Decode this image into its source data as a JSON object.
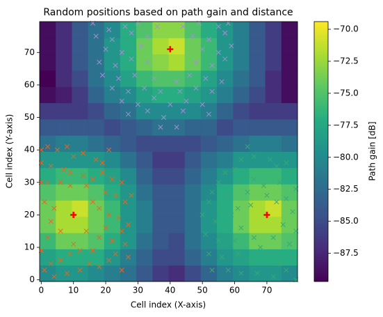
{
  "chart_data": {
    "type": "heatmap",
    "title": "Random positions based on path gain and distance",
    "x_label": "Cell index (X-axis)",
    "y_label": "Cell index (Y-axis)",
    "colorbar_label": "Path gain [dB]",
    "xlim": [
      -0.5,
      79.5
    ],
    "ylim": [
      -0.5,
      79.5
    ],
    "xticks": [
      0,
      10,
      20,
      30,
      40,
      50,
      60,
      70
    ],
    "yticks": [
      0,
      10,
      20,
      30,
      40,
      50,
      60,
      70
    ],
    "origin": "lower",
    "colormap": [
      "#440154",
      "#472c7a",
      "#3b518b",
      "#2c718e",
      "#21908d",
      "#27ad81",
      "#5cc863",
      "#aadc32",
      "#fde725"
    ],
    "clim": [
      -89.7,
      -69.4
    ],
    "cticks": [
      {
        "value": -70,
        "label": "−70.0"
      },
      {
        "value": -72.5,
        "label": "−72.5"
      },
      {
        "value": -75,
        "label": "−75.0"
      },
      {
        "value": -77.5,
        "label": "−77.5"
      },
      {
        "value": -80,
        "label": "−80.0"
      },
      {
        "value": -82.5,
        "label": "−82.5"
      },
      {
        "value": -85,
        "label": "−85.0"
      },
      {
        "value": -87.5,
        "label": "−87.5"
      }
    ],
    "heatmap": {
      "z": [
        [
          -80,
          -79,
          -79,
          -80,
          -81,
          -82,
          -84,
          -86,
          -87,
          -85,
          -83,
          -81,
          -80,
          -79,
          -79,
          -80
        ],
        [
          -78,
          -77,
          -77,
          -77,
          -79,
          -81,
          -83,
          -85,
          -85,
          -83,
          -81,
          -79,
          -78,
          -77,
          -77,
          -77
        ],
        [
          -76,
          -74,
          -74,
          -75,
          -77,
          -79,
          -82,
          -84,
          -85,
          -82,
          -80,
          -78,
          -76,
          -74,
          -74,
          -75
        ],
        [
          -74,
          -72,
          -72,
          -74,
          -76,
          -79,
          -81,
          -84,
          -84,
          -82,
          -79,
          -77,
          -74,
          -72,
          -72,
          -74
        ],
        [
          -74,
          -72,
          -71,
          -74,
          -76,
          -79,
          -81,
          -84,
          -84,
          -82,
          -79,
          -77,
          -74,
          -72,
          -71,
          -74
        ],
        [
          -75,
          -74,
          -74,
          -75,
          -77,
          -79,
          -82,
          -84,
          -84,
          -82,
          -80,
          -77,
          -75,
          -74,
          -74,
          -75
        ],
        [
          -77,
          -76,
          -76,
          -77,
          -78,
          -80,
          -83,
          -85,
          -85,
          -83,
          -81,
          -79,
          -77,
          -76,
          -76,
          -77
        ],
        [
          -79,
          -79,
          -79,
          -79,
          -80,
          -82,
          -84,
          -86,
          -86,
          -84,
          -82,
          -81,
          -79,
          -79,
          -79,
          -79
        ],
        [
          -82,
          -81,
          -81,
          -82,
          -83,
          -84,
          -85,
          -85,
          -85,
          -85,
          -84,
          -83,
          -82,
          -81,
          -81,
          -82
        ],
        [
          -84,
          -84,
          -84,
          -84,
          -85,
          -84,
          -83,
          -82,
          -82,
          -83,
          -83,
          -85,
          -84,
          -84,
          -84,
          -84
        ],
        [
          -86,
          -86,
          -86,
          -85,
          -83,
          -82,
          -80,
          -80,
          -80,
          -80,
          -81,
          -83,
          -85,
          -86,
          -86,
          -86
        ],
        [
          -89,
          -88,
          -86,
          -83,
          -81,
          -80,
          -78,
          -77,
          -77,
          -78,
          -79,
          -81,
          -83,
          -85,
          -87,
          -89
        ],
        [
          -90,
          -87,
          -85,
          -82,
          -80,
          -78,
          -76,
          -75,
          -75,
          -76,
          -78,
          -80,
          -82,
          -84,
          -87,
          -89
        ],
        [
          -89,
          -87,
          -84,
          -82,
          -79,
          -77,
          -74,
          -73,
          -72,
          -74,
          -76,
          -79,
          -81,
          -84,
          -86,
          -89
        ],
        [
          -89,
          -87,
          -84,
          -82,
          -79,
          -77,
          -74,
          -72,
          -71,
          -74,
          -76,
          -79,
          -81,
          -84,
          -86,
          -89
        ],
        [
          -89,
          -87,
          -84,
          -82,
          -80,
          -77,
          -75,
          -73,
          -73,
          -75,
          -77,
          -79,
          -81,
          -84,
          -86,
          -89
        ]
      ]
    },
    "series": [
      {
        "color": "#e3691e",
        "marker": "x",
        "x": [
          0,
          2,
          5,
          8,
          10,
          13,
          17,
          19,
          21,
          0,
          3,
          7,
          9,
          13,
          16,
          19,
          22,
          25,
          0,
          2,
          6,
          9,
          14,
          20,
          23,
          26,
          28,
          1,
          4,
          16,
          18,
          21,
          24,
          27,
          25,
          20,
          22,
          26,
          18,
          16,
          12,
          9,
          6,
          3,
          1,
          4,
          8,
          12,
          15,
          18,
          21,
          23,
          25,
          27,
          2,
          0,
          6,
          14,
          10,
          3
        ],
        "values": [
          40,
          41,
          40,
          41,
          38,
          39,
          37,
          36,
          40,
          36,
          35,
          34,
          33,
          32,
          31,
          33,
          31,
          30,
          30,
          30,
          30,
          29,
          29,
          27,
          26,
          24,
          26,
          24,
          22,
          24,
          22,
          20,
          19,
          17,
          15,
          16,
          12,
          11,
          13,
          9,
          9,
          8,
          6,
          5,
          3,
          1,
          2,
          3,
          5,
          4,
          6,
          8,
          3,
          7,
          13,
          9,
          15,
          15,
          11,
          18
        ]
      },
      {
        "color": "#3aa776",
        "marker": "x",
        "x": [
          64,
          62,
          66,
          71,
          73,
          76,
          78,
          60,
          57,
          55,
          61,
          66,
          69,
          74,
          79,
          53,
          58,
          64,
          70,
          76,
          52,
          56,
          61,
          65,
          78,
          50,
          54,
          57,
          62,
          75,
          79,
          51,
          55,
          60,
          66,
          72,
          77,
          52,
          56,
          61,
          65,
          70,
          74,
          78,
          53,
          58,
          62,
          67,
          72,
          76,
          79,
          59,
          68,
          73,
          63
        ],
        "values": [
          41,
          37,
          38,
          37,
          35,
          36,
          33,
          34,
          33,
          30,
          30,
          31,
          29,
          30,
          28,
          27,
          26,
          27,
          26,
          25,
          24,
          22,
          22,
          23,
          21,
          20,
          18,
          17,
          16,
          17,
          15,
          14,
          12,
          12,
          13,
          13,
          11,
          8,
          7,
          8,
          6,
          7,
          5,
          7,
          3,
          3,
          2,
          2,
          1,
          3,
          0,
          20,
          10,
          24,
          32
        ]
      },
      {
        "color": "#a58fd6",
        "marker": "x",
        "x": [
          16,
          21,
          26,
          30,
          36,
          44,
          49,
          55,
          58,
          17,
          22,
          28,
          33,
          47,
          52,
          57,
          20,
          25,
          31,
          50,
          55,
          59,
          18,
          23,
          28,
          33,
          48,
          53,
          57,
          19,
          24,
          29,
          35,
          42,
          46,
          51,
          56,
          22,
          27,
          32,
          37,
          43,
          48,
          53,
          25,
          30,
          35,
          40,
          45,
          50,
          27,
          33,
          38,
          44,
          52,
          37,
          42
        ],
        "values": [
          79,
          77,
          78,
          79,
          78,
          78,
          79,
          78,
          79,
          75,
          74,
          76,
          75,
          75,
          74,
          76,
          71,
          70,
          72,
          71,
          70,
          72,
          67,
          66,
          68,
          67,
          67,
          66,
          68,
          63,
          62,
          63,
          62,
          61,
          63,
          62,
          61,
          59,
          58,
          59,
          58,
          58,
          59,
          58,
          55,
          54,
          56,
          54,
          55,
          54,
          51,
          52,
          50,
          52,
          51,
          47,
          47
        ]
      },
      {
        "color": "#ff0000",
        "marker": "plus",
        "x": [
          10,
          70,
          40
        ],
        "values": [
          20,
          20,
          71
        ]
      }
    ]
  }
}
